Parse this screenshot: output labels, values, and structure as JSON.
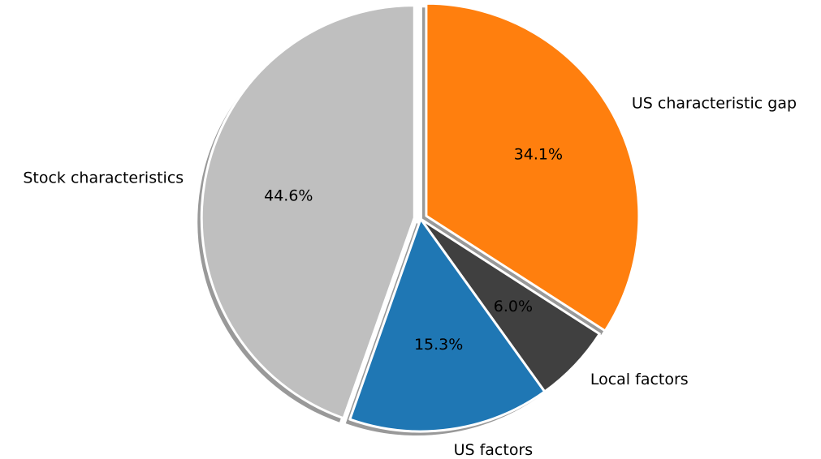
{
  "chart_data": {
    "type": "pie",
    "categories": [
      "US characteristic gap",
      "Local factors",
      "US factors",
      "Stock characteristics"
    ],
    "values": [
      34.1,
      6.0,
      15.3,
      44.6
    ],
    "value_labels": [
      "34.1%",
      "6.0%",
      "15.3%",
      "44.6%"
    ],
    "colors": [
      "#ff7f0e",
      "#404040",
      "#1f77b4",
      "#bfbfbf"
    ],
    "explode": [
      0.03,
      0,
      0,
      0.03
    ],
    "start_angle": 90,
    "clockwise": true,
    "shadow": true
  }
}
